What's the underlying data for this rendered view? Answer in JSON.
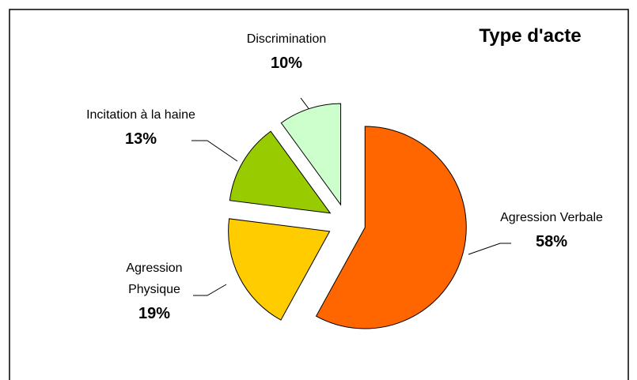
{
  "chart_data": {
    "type": "pie",
    "title": "Type d'acte",
    "categories": [
      "Agression Verbale",
      "Agression Physique",
      "Incitation à la haine",
      "Discrimination"
    ],
    "values": [
      58,
      19,
      13,
      10
    ],
    "value_labels": [
      "58%",
      "19%",
      "13%",
      "10%"
    ],
    "colors": [
      "#ff6600",
      "#ffcc00",
      "#99cc00",
      "#ccffcc"
    ]
  }
}
